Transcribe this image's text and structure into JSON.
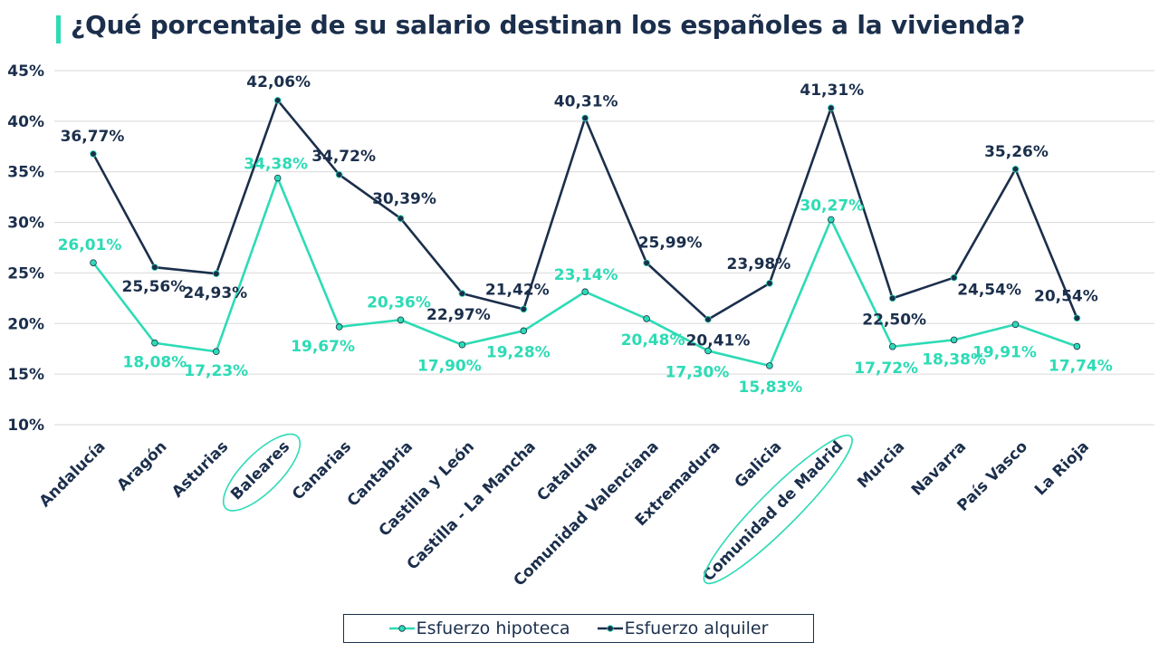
{
  "title": "¿Qué porcentaje de su salario destinan los españoles a la vivienda?",
  "colors": {
    "hipoteca": "#2ddbb5",
    "alquiler": "#1b2f4c",
    "highlight": "#2ddbb5"
  },
  "chart_data": {
    "type": "line",
    "categories": [
      "Andalucía",
      "Aragón",
      "Asturias",
      "Baleares",
      "Canarias",
      "Cantabria",
      "Castilla y León",
      "Castilla - La Mancha",
      "Cataluña",
      "Comunidad Valenciana",
      "Extremadura",
      "Galicia",
      "Comunidad de Madrid",
      "Murcia",
      "Navarra",
      "País Vasco",
      "La Rioja"
    ],
    "series": [
      {
        "name": "Esfuerzo hipoteca",
        "values": [
          26.01,
          18.08,
          17.23,
          34.38,
          19.67,
          20.36,
          17.9,
          19.28,
          23.14,
          20.48,
          17.3,
          15.83,
          30.27,
          17.72,
          18.38,
          19.91,
          17.74
        ],
        "labels": [
          "26,01%",
          "18,08%",
          "17,23%",
          "34,38%",
          "19,67%",
          "20,36%",
          "17,90%",
          "19,28%",
          "23,14%",
          "20,48%",
          "17,30%",
          "15,83%",
          "30,27%",
          "17,72%",
          "18,38%",
          "19,91%",
          "17,74%"
        ]
      },
      {
        "name": "Esfuerzo alquiler",
        "values": [
          36.77,
          25.56,
          24.93,
          42.06,
          34.72,
          30.39,
          22.97,
          21.42,
          40.31,
          25.99,
          20.41,
          23.98,
          41.31,
          22.5,
          24.54,
          35.26,
          20.54
        ],
        "labels": [
          "36,77%",
          "25,56%",
          "24,93%",
          "42,06%",
          "34,72%",
          "30,39%",
          "22,97%",
          "21,42%",
          "40,31%",
          "25,99%",
          "20,41%",
          "23,98%",
          "41,31%",
          "22,50%",
          "24,54%",
          "35,26%",
          "20,54%"
        ]
      }
    ],
    "yticks": [
      "10%",
      "15%",
      "20%",
      "25%",
      "30%",
      "35%",
      "40%",
      "45%"
    ],
    "ylim": [
      10,
      45
    ],
    "grid": true,
    "legend_position": "bottom",
    "highlighted_categories": [
      "Baleares",
      "Comunidad de Madrid"
    ]
  }
}
